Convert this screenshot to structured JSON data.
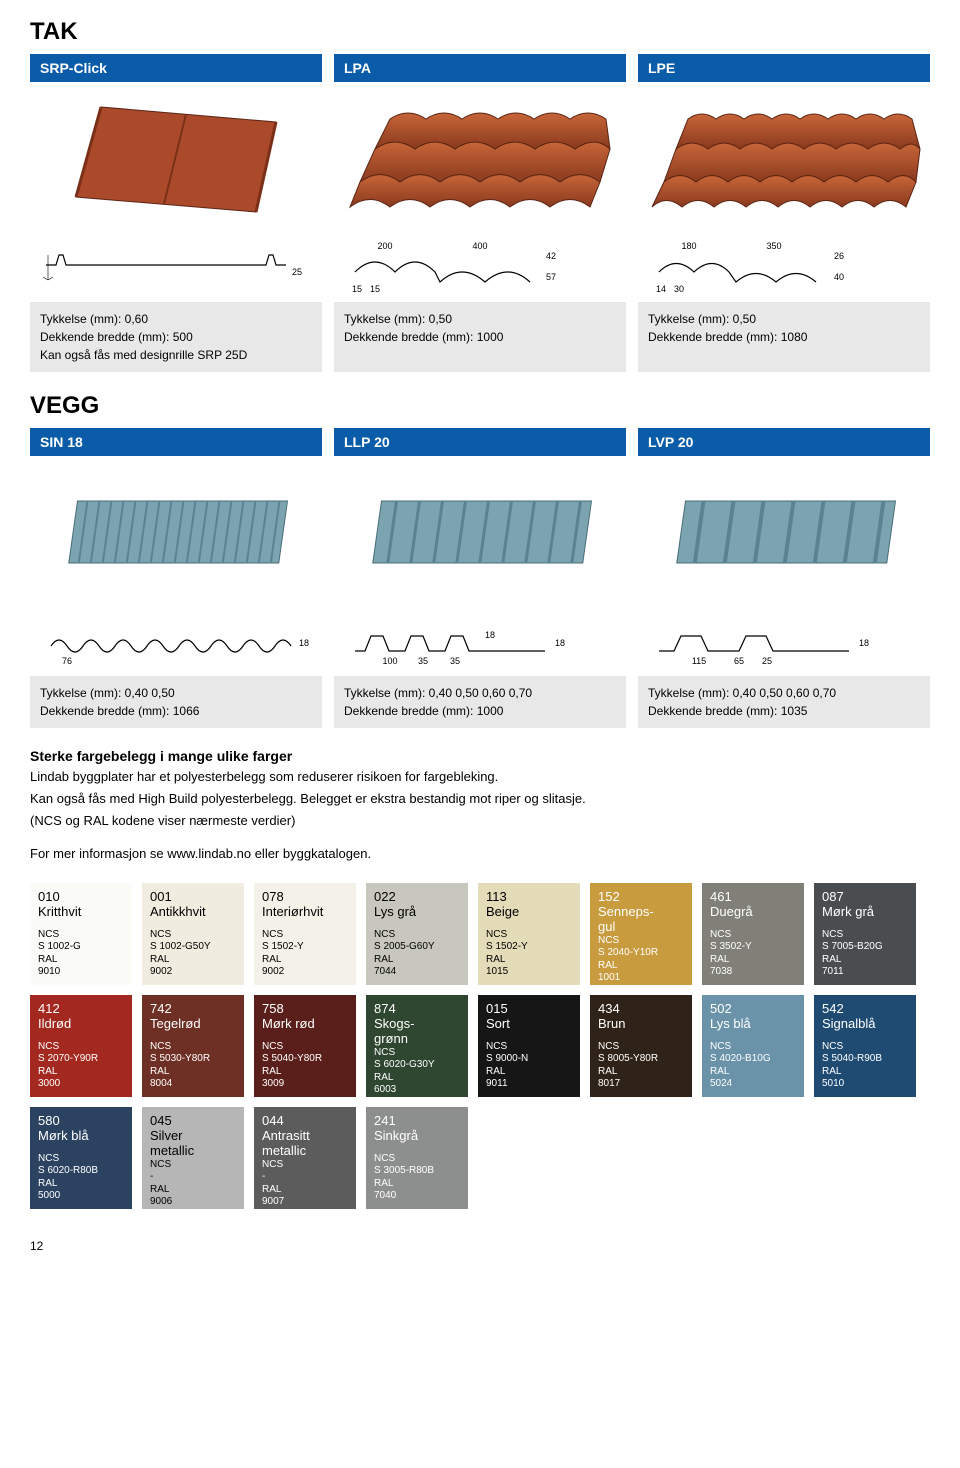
{
  "sections": {
    "tak": "TAK",
    "vegg": "VEGG"
  },
  "tak_products": [
    {
      "header": "SRP-Click",
      "spec1": "Tykkelse (mm): 0,60",
      "spec2": "Dekkende bredde (mm): 500",
      "spec3": "Kan også fås med designrille SRP 25D"
    },
    {
      "header": "LPA",
      "spec1": "Tykkelse (mm): 0,50",
      "spec2": "Dekkende bredde (mm): 1000",
      "spec3": ""
    },
    {
      "header": "LPE",
      "spec1": "Tykkelse (mm): 0,50",
      "spec2": "Dekkende bredde (mm): 1080",
      "spec3": ""
    }
  ],
  "vegg_products": [
    {
      "header": "SIN 18",
      "spec1": "Tykkelse (mm): 0,40  0,50",
      "spec2": "Dekkende bredde (mm): 1066",
      "spec3": ""
    },
    {
      "header": "LLP 20",
      "spec1": "Tykkelse (mm): 0,40  0,50  0,60  0,70",
      "spec2": "Dekkende bredde (mm): 1000",
      "spec3": ""
    },
    {
      "header": "LVP 20",
      "spec1": "Tykkelse (mm): 0,40  0,50  0,60  0,70",
      "spec2": "Dekkende bredde (mm): 1035",
      "spec3": ""
    }
  ],
  "body": {
    "title": "Sterke fargebelegg i mange ulike farger",
    "p1": "Lindab byggplater har et polyesterbelegg som reduserer risikoen for fargebleking.",
    "p2": "Kan også fås med High Build polyesterbelegg. Belegget er ekstra bestandig mot riper og slitasje.",
    "p3": "(NCS og RAL kodene viser nærmeste verdier)",
    "p4": "For mer informasjon se www.lindab.no eller byggkatalogen."
  },
  "swatches": [
    {
      "code": "010",
      "name": "Kritthvit",
      "bg": "#fbfbf8",
      "textClass": "light",
      "ncs": "S 1002-G",
      "ral": "9010"
    },
    {
      "code": "001",
      "name": "Antikkhvit",
      "bg": "#f0ece0",
      "textClass": "light",
      "ncs": "S 1002-G50Y",
      "ral": "9002"
    },
    {
      "code": "078",
      "name": "Interiørhvit",
      "bg": "#f3f1e8",
      "textClass": "light",
      "ncs": "S 1502-Y",
      "ral": "9002"
    },
    {
      "code": "022",
      "name": "Lys grå",
      "bg": "#c7c7bd",
      "textClass": "light",
      "ncs": "S 2005-G60Y",
      "ral": "7044"
    },
    {
      "code": "113",
      "name": "Beige",
      "bg": "#e4dcb9",
      "textClass": "light",
      "ncs": "S 1502-Y",
      "ral": "1015"
    },
    {
      "code": "152",
      "name": "Senneps-\ngul",
      "bg": "#c89b3e",
      "textClass": "dark",
      "ncs": "S 2040-Y10R",
      "ral": "1001"
    },
    {
      "code": "461",
      "name": "Duegrå",
      "bg": "#808078",
      "textClass": "dark",
      "ncs": "S 3502-Y",
      "ral": "7038"
    },
    {
      "code": "087",
      "name": "Mørk grå",
      "bg": "#4a4d4f",
      "textClass": "dark",
      "ncs": "S 7005-B20G",
      "ral": "7011"
    },
    {
      "code": "412",
      "name": "Ildrød",
      "bg": "#a22820",
      "textClass": "dark",
      "ncs": "S 2070-Y90R",
      "ral": "3000"
    },
    {
      "code": "742",
      "name": "Tegelrød",
      "bg": "#6e2f24",
      "textClass": "dark",
      "ncs": "S 5030-Y80R",
      "ral": "8004"
    },
    {
      "code": "758",
      "name": "Mørk rød",
      "bg": "#5a1f1b",
      "textClass": "dark",
      "ncs": "S 5040-Y80R",
      "ral": "3009"
    },
    {
      "code": "874",
      "name": "Skogs-\ngrønn",
      "bg": "#2f4630",
      "textClass": "dark",
      "ncs": "S 6020-G30Y",
      "ral": "6003"
    },
    {
      "code": "015",
      "name": "Sort",
      "bg": "#161616",
      "textClass": "dark",
      "ncs": "S 9000-N",
      "ral": "9011"
    },
    {
      "code": "434",
      "name": "Brun",
      "bg": "#2f2218",
      "textClass": "dark",
      "ncs": "S 8005-Y80R",
      "ral": "8017"
    },
    {
      "code": "502",
      "name": "Lys blå",
      "bg": "#6a92a8",
      "textClass": "dark",
      "ncs": "S 4020-B10G",
      "ral": "5024"
    },
    {
      "code": "542",
      "name": "Signalblå",
      "bg": "#1f4a72",
      "textClass": "dark",
      "ncs": "S 5040-R90B",
      "ral": "5010"
    },
    {
      "code": "580",
      "name": "Mørk blå",
      "bg": "#2b4260",
      "textClass": "dark",
      "ncs": "S 6020-R80B",
      "ral": "5000"
    },
    {
      "code": "045",
      "name": "Silver\nmetallic",
      "bg": "#b5b6b5",
      "textClass": "light",
      "ncs": "- ",
      "ral": "9006"
    },
    {
      "code": "044",
      "name": "Antrasitt\nmetallic",
      "bg": "#5c5c5c",
      "textClass": "dark",
      "ncs": "- ",
      "ral": "9007"
    },
    {
      "code": "241",
      "name": "Sinkgrå",
      "bg": "#8d8f8e",
      "textClass": "dark",
      "ncs": "S 3005-R80B",
      "ral": "7040"
    }
  ],
  "labels": {
    "ncs": "NCS",
    "ral": "RAL"
  },
  "page_number": "12",
  "colors": {
    "header_blue": "#0a5ca8",
    "spec_grey": "#e8e8e8",
    "roof_red": "#aa4a2a",
    "wall_blue": "#7ba3b0"
  },
  "diagrams": {
    "srp": {
      "span": "25"
    },
    "lpa": {
      "pitch": "200",
      "tile": "400",
      "h": "42",
      "step": "57",
      "off1": "15",
      "off2": "15"
    },
    "lpe": {
      "pitch": "180",
      "tile": "350",
      "h": "26",
      "step": "40",
      "off1": "30",
      "off2": "14"
    },
    "sin18": {
      "pitch": "76",
      "h": "18"
    },
    "llp20": {
      "rib": "100",
      "flat": "35",
      "gap": "35",
      "h1": "18",
      "h2": "18"
    },
    "lvp20": {
      "rib": "115",
      "flat": "65",
      "gap": "25",
      "h": "18"
    }
  }
}
